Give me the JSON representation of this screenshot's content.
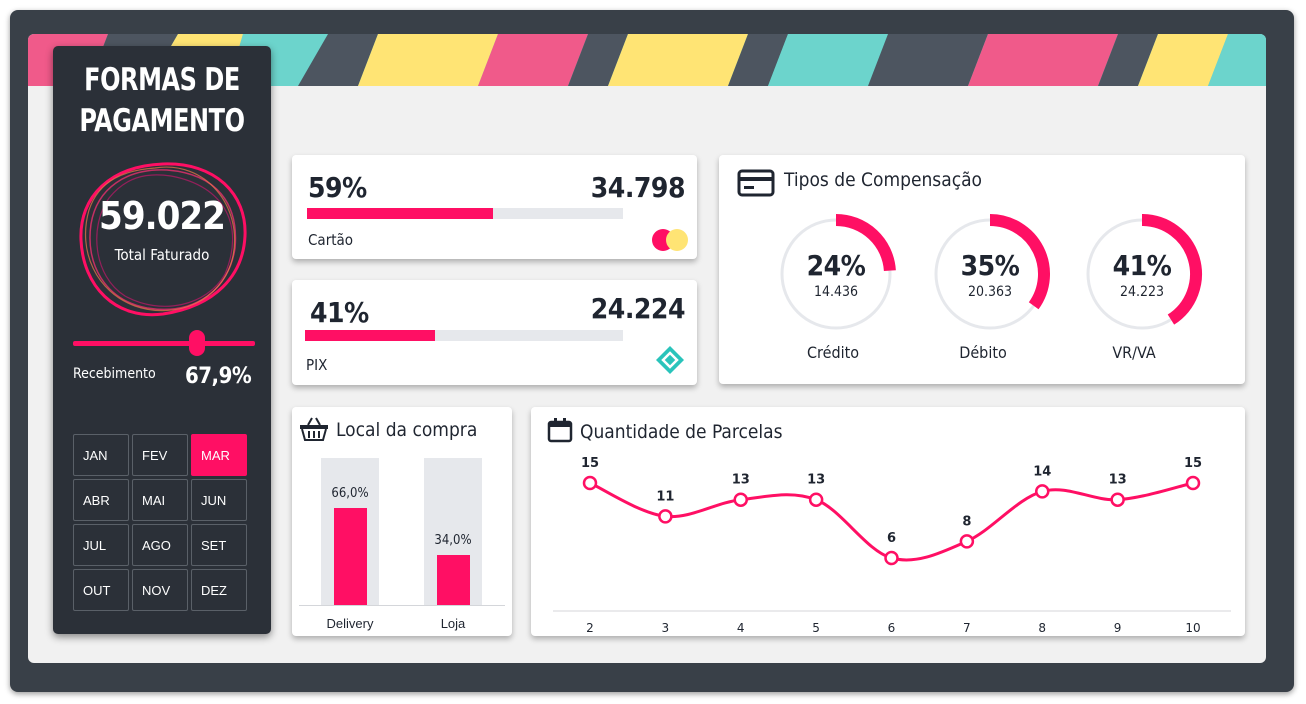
{
  "sidebar": {
    "title_line1": "FORMAS DE",
    "title_line2": "PAGAMENTO",
    "total_value": "59.022",
    "total_label": "Total Faturado",
    "receipt_label": "Recebimento",
    "receipt_value": "67,9%",
    "receipt_fraction": 0.679,
    "months": [
      {
        "label": "JAN",
        "active": false
      },
      {
        "label": "FEV",
        "active": false
      },
      {
        "label": "MAR",
        "active": true
      },
      {
        "label": "ABR",
        "active": false
      },
      {
        "label": "MAI",
        "active": false
      },
      {
        "label": "JUN",
        "active": false
      },
      {
        "label": "JUL",
        "active": false
      },
      {
        "label": "AGO",
        "active": false
      },
      {
        "label": "SET",
        "active": false
      },
      {
        "label": "OUT",
        "active": false
      },
      {
        "label": "NOV",
        "active": false
      },
      {
        "label": "DEZ",
        "active": false
      }
    ]
  },
  "colors": {
    "accent": "#ff0f64",
    "dark": "#2b3038",
    "text": "#1f2530",
    "track": "#e6e8ec",
    "teal": "#2ac4bb",
    "yellow": "#ffe474"
  },
  "payments": [
    {
      "percent": "59%",
      "fraction": 0.59,
      "value": "34.798",
      "label": "Cartão",
      "icon": "card-brand-icon"
    },
    {
      "percent": "41%",
      "fraction": 0.41,
      "value": "24.224",
      "label": "PIX",
      "icon": "pix-icon"
    }
  ],
  "compensation": {
    "title": "Tipos de Compensação",
    "icon": "credit-card-icon",
    "items": [
      {
        "percent": "24%",
        "fraction": 0.24,
        "value": "14.436",
        "label": "Crédito"
      },
      {
        "percent": "35%",
        "fraction": 0.35,
        "value": "20.363",
        "label": "Débito"
      },
      {
        "percent": "41%",
        "fraction": 0.41,
        "value": "24.223",
        "label": "VR/VA"
      }
    ]
  },
  "local": {
    "title": "Local da compra",
    "icon": "basket-icon",
    "chart_data": {
      "type": "bar",
      "categories": [
        "Delivery",
        "Loja"
      ],
      "values": [
        66.0,
        34.0
      ],
      "value_labels": [
        "66,0%",
        "34,0%"
      ],
      "ylim": [
        0,
        100
      ]
    }
  },
  "parcelas": {
    "title": "Quantidade de Parcelas",
    "icon": "calendar-icon",
    "chart_data": {
      "type": "line",
      "x": [
        "2",
        "3",
        "4",
        "5",
        "6",
        "7",
        "8",
        "9",
        "10"
      ],
      "values": [
        15,
        11,
        13,
        13,
        6,
        8,
        14,
        13,
        15
      ],
      "value_labels": [
        "15",
        "11",
        "13",
        "13",
        "6",
        "8",
        "14",
        "13",
        "15"
      ]
    }
  }
}
